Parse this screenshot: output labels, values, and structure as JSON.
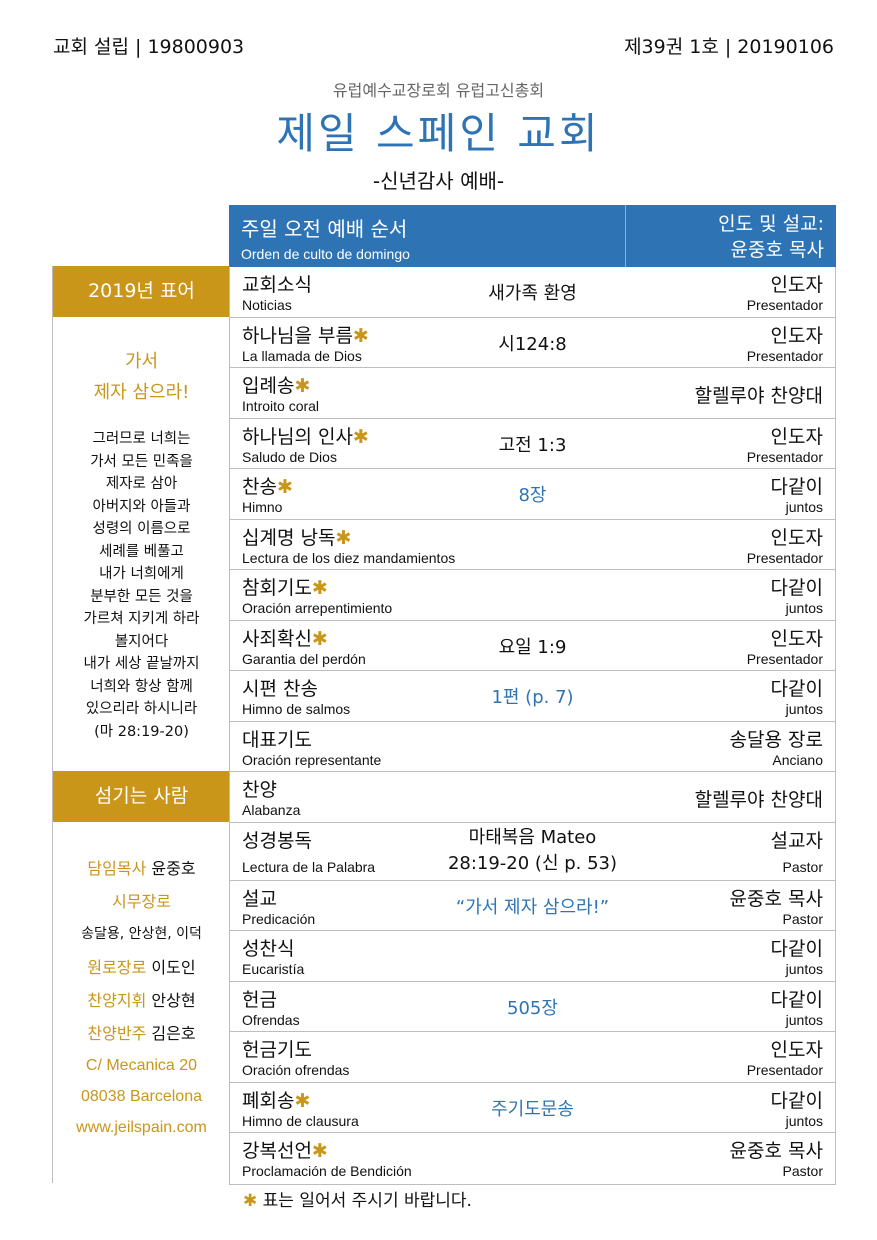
{
  "top": {
    "left": "교회 설립 | 19800903",
    "right": "제39권 1호 | 20190106"
  },
  "header": {
    "org": "유럽예수교장로회 유럽고신총회",
    "church": "제일 스페인 교회",
    "service": "-신년감사 예배-"
  },
  "order_header": {
    "title_ko": "주일 오전 예배 순서",
    "title_es": "Orden de culto de domingo",
    "leader_label": "인도 및 설교:",
    "leader_name": "윤중호 목사"
  },
  "sidebar": {
    "motto_head": "2019년 표어",
    "motto_line1": "가서",
    "motto_line2": "제자 삼으라!",
    "verse_lines": [
      "그러므로 너희는",
      "가서 모든 민족을",
      "제자로 삼아",
      "아버지와 아들과",
      "성령의 이름으로",
      "세례를 베풀고",
      "내가 너희에게",
      "분부한 모든 것을",
      "가르쳐 지키게 하라",
      "볼지어다",
      "내가 세상 끝날까지",
      "너희와 항상 함께",
      "있으리라 하시니라",
      "(마 28:19-20)"
    ],
    "servants_head": "섬기는 사람",
    "senior_pastor_role": "담임목사",
    "senior_pastor_name": "윤중호",
    "elders_role": "시무장로",
    "elders_names": "송달용, 안상현, 이덕",
    "retired_role": "원로장로",
    "retired_name": "이도인",
    "choir_director_role": "찬양지휘",
    "choir_director_name": "안상현",
    "accompanist_role": "찬양반주",
    "accompanist_name": "김은호",
    "address1": "C/ Mecanica 20",
    "address2": "08038 Barcelona",
    "website": "www.jeilspain.com"
  },
  "order": [
    {
      "ko": "교회소식",
      "es": "Noticias",
      "mid": "새가족 환영",
      "rko": "인도자",
      "res": "Presentador"
    },
    {
      "ko": "하나님을 부름",
      "es": "La llamada de Dios",
      "mid": "시124:8",
      "rko": "인도자",
      "res": "Presentador"
    },
    {
      "ko": "입례송",
      "es": "Introito coral",
      "mid": "",
      "rko": "할렐루야 찬양대",
      "res": ""
    },
    {
      "ko": "하나님의 인사",
      "es": "Saludo de Dios",
      "mid": "고전 1:3",
      "rko": "인도자",
      "res": "Presentador"
    },
    {
      "ko": "찬송",
      "es": "Himno",
      "mid": "8장",
      "rko": "다같이",
      "res": "juntos"
    },
    {
      "ko": "십계명 낭독",
      "es": "Lectura de los diez mandamientos",
      "mid": "",
      "rko": "인도자",
      "res": "Presentador"
    },
    {
      "ko": "참회기도",
      "es": "Oración arrepentimiento",
      "mid": "",
      "rko": "다같이",
      "res": "juntos"
    },
    {
      "ko": "사죄확신",
      "es": "Garantia del perdón",
      "mid": "요일 1:9",
      "rko": "인도자",
      "res": "Presentador"
    },
    {
      "ko": "시편 찬송",
      "es": "Himno de salmos",
      "mid": "1편 (p. 7)",
      "rko": "다같이",
      "res": "juntos"
    },
    {
      "ko": "대표기도",
      "es": "Oración representante",
      "mid": "",
      "rko": "송달용 장로",
      "res": "Anciano"
    },
    {
      "ko": "찬양",
      "es": "Alabanza",
      "mid": "",
      "rko": "할렐루야 찬양대",
      "res": ""
    },
    {
      "ko": "성경봉독",
      "es": "Lectura de la Palabra",
      "mid1": "마태복음 Mateo",
      "mid2": "28:19-20 (신 p. 53)",
      "rko": "설교자",
      "res": "Pastor"
    },
    {
      "ko": "설교",
      "es": "Predicación",
      "mid": "“가서 제자 삼으라!”",
      "rko": "윤중호 목사",
      "res": "Pastor"
    },
    {
      "ko": "성찬식",
      "es": "Eucaristía",
      "mid": "",
      "rko": "다같이",
      "res": "juntos"
    },
    {
      "ko": "헌금",
      "es": "Ofrendas",
      "mid": "505장",
      "rko": "다같이",
      "res": "juntos"
    },
    {
      "ko": "헌금기도",
      "es": "Oración ofrendas",
      "mid": "",
      "rko": "인도자",
      "res": "Presentador"
    },
    {
      "ko": "폐회송",
      "es": "Himno de clausura",
      "mid": "주기도문송",
      "rko": "다같이",
      "res": "juntos"
    },
    {
      "ko": "강복선언",
      "es": "Proclamación de Bendición",
      "mid": "",
      "rko": "윤중호 목사",
      "res": "Pastor"
    }
  ],
  "star": "✱",
  "footnote": "표는 일어서 주시기 바랍니다.",
  "colors": {
    "blue": "#2e74b5",
    "gold": "#c9961a",
    "border": "#bdbdbd"
  }
}
